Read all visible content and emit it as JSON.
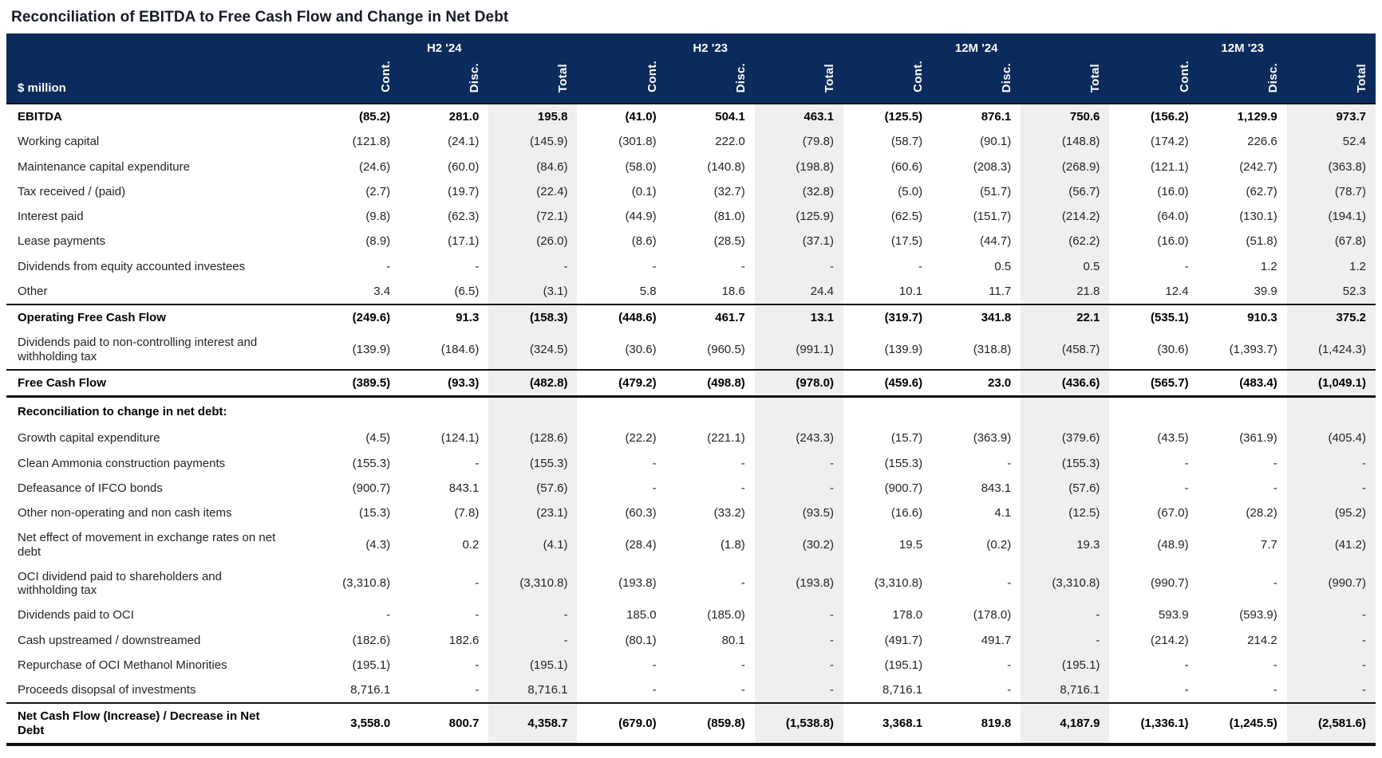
{
  "title": "Reconciliation of EBITDA to Free Cash Flow and Change in Net Debt",
  "colors": {
    "header_bg": "#0b2b5c",
    "header_text": "#ffffff",
    "total_column_bg": "#efefef",
    "title_text": "#161b26",
    "body_text": "#242424",
    "rule_color": "#111111"
  },
  "table": {
    "unit_label": "$ million",
    "groups": [
      {
        "label": "H2 '24"
      },
      {
        "label": "H2 '23"
      },
      {
        "label": "12M '24"
      },
      {
        "label": "12M '23"
      }
    ],
    "sub_columns": [
      "Cont.",
      "Disc.",
      "Total"
    ],
    "rows": [
      {
        "label": "EBITDA",
        "bold": true,
        "section": false,
        "rule_top": false,
        "rule_bottom": null,
        "values": [
          "(85.2)",
          "281.0",
          "195.8",
          "(41.0)",
          "504.1",
          "463.1",
          "(125.5)",
          "876.1",
          "750.6",
          "(156.2)",
          "1,129.9",
          "973.7"
        ]
      },
      {
        "label": "Working capital",
        "bold": false,
        "section": false,
        "rule_top": false,
        "rule_bottom": null,
        "values": [
          "(121.8)",
          "(24.1)",
          "(145.9)",
          "(301.8)",
          "222.0",
          "(79.8)",
          "(58.7)",
          "(90.1)",
          "(148.8)",
          "(174.2)",
          "226.6",
          "52.4"
        ]
      },
      {
        "label": "Maintenance capital expenditure",
        "bold": false,
        "section": false,
        "rule_top": false,
        "rule_bottom": null,
        "values": [
          "(24.6)",
          "(60.0)",
          "(84.6)",
          "(58.0)",
          "(140.8)",
          "(198.8)",
          "(60.6)",
          "(208.3)",
          "(268.9)",
          "(121.1)",
          "(242.7)",
          "(363.8)"
        ]
      },
      {
        "label": "Tax received / (paid)",
        "bold": false,
        "section": false,
        "rule_top": false,
        "rule_bottom": null,
        "values": [
          "(2.7)",
          "(19.7)",
          "(22.4)",
          "(0.1)",
          "(32.7)",
          "(32.8)",
          "(5.0)",
          "(51.7)",
          "(56.7)",
          "(16.0)",
          "(62.7)",
          "(78.7)"
        ]
      },
      {
        "label": "Interest paid",
        "bold": false,
        "section": false,
        "rule_top": false,
        "rule_bottom": null,
        "values": [
          "(9.8)",
          "(62.3)",
          "(72.1)",
          "(44.9)",
          "(81.0)",
          "(125.9)",
          "(62.5)",
          "(151.7)",
          "(214.2)",
          "(64.0)",
          "(130.1)",
          "(194.1)"
        ]
      },
      {
        "label": "Lease payments",
        "bold": false,
        "section": false,
        "rule_top": false,
        "rule_bottom": null,
        "values": [
          "(8.9)",
          "(17.1)",
          "(26.0)",
          "(8.6)",
          "(28.5)",
          "(37.1)",
          "(17.5)",
          "(44.7)",
          "(62.2)",
          "(16.0)",
          "(51.8)",
          "(67.8)"
        ]
      },
      {
        "label": "Dividends from equity accounted investees",
        "bold": false,
        "section": false,
        "rule_top": false,
        "rule_bottom": null,
        "values": [
          "-",
          "-",
          "-",
          "-",
          "-",
          "-",
          "-",
          "0.5",
          "0.5",
          "-",
          "1.2",
          "1.2"
        ]
      },
      {
        "label": "Other",
        "bold": false,
        "section": false,
        "rule_top": false,
        "rule_bottom": null,
        "values": [
          "3.4",
          "(6.5)",
          "(3.1)",
          "5.8",
          "18.6",
          "24.4",
          "10.1",
          "11.7",
          "21.8",
          "12.4",
          "39.9",
          "52.3"
        ]
      },
      {
        "label": "Operating Free Cash Flow",
        "bold": true,
        "section": false,
        "rule_top": true,
        "rule_bottom": null,
        "values": [
          "(249.6)",
          "91.3",
          "(158.3)",
          "(448.6)",
          "461.7",
          "13.1",
          "(319.7)",
          "341.8",
          "22.1",
          "(535.1)",
          "910.3",
          "375.2"
        ]
      },
      {
        "label": "Dividends paid to non-controlling interest and withholding tax",
        "bold": false,
        "section": false,
        "rule_top": false,
        "rule_bottom": null,
        "values": [
          "(139.9)",
          "(184.6)",
          "(324.5)",
          "(30.6)",
          "(960.5)",
          "(991.1)",
          "(139.9)",
          "(318.8)",
          "(458.7)",
          "(30.6)",
          "(1,393.7)",
          "(1,424.3)"
        ]
      },
      {
        "label": "Free Cash Flow",
        "bold": true,
        "section": false,
        "rule_top": true,
        "rule_bottom": "thick",
        "values": [
          "(389.5)",
          "(93.3)",
          "(482.8)",
          "(479.2)",
          "(498.8)",
          "(978.0)",
          "(459.6)",
          "23.0",
          "(436.6)",
          "(565.7)",
          "(483.4)",
          "(1,049.1)"
        ]
      },
      {
        "label": "Reconciliation to change in net debt:",
        "bold": false,
        "section": true,
        "rule_top": false,
        "rule_bottom": null,
        "values": [
          "",
          "",
          "",
          "",
          "",
          "",
          "",
          "",
          "",
          "",
          "",
          ""
        ]
      },
      {
        "label": "Growth capital expenditure",
        "bold": false,
        "section": false,
        "rule_top": false,
        "rule_bottom": null,
        "values": [
          "(4.5)",
          "(124.1)",
          "(128.6)",
          "(22.2)",
          "(221.1)",
          "(243.3)",
          "(15.7)",
          "(363.9)",
          "(379.6)",
          "(43.5)",
          "(361.9)",
          "(405.4)"
        ]
      },
      {
        "label": "Clean Ammonia construction payments",
        "bold": false,
        "section": false,
        "rule_top": false,
        "rule_bottom": null,
        "values": [
          "(155.3)",
          "-",
          "(155.3)",
          "-",
          "-",
          "-",
          "(155.3)",
          "-",
          "(155.3)",
          "-",
          "-",
          "-"
        ]
      },
      {
        "label": "Defeasance of IFCO bonds",
        "bold": false,
        "section": false,
        "rule_top": false,
        "rule_bottom": null,
        "values": [
          "(900.7)",
          "843.1",
          "(57.6)",
          "-",
          "-",
          "-",
          "(900.7)",
          "843.1",
          "(57.6)",
          "-",
          "-",
          "-"
        ]
      },
      {
        "label": "Other non-operating and non cash items",
        "bold": false,
        "section": false,
        "rule_top": false,
        "rule_bottom": null,
        "values": [
          "(15.3)",
          "(7.8)",
          "(23.1)",
          "(60.3)",
          "(33.2)",
          "(93.5)",
          "(16.6)",
          "4.1",
          "(12.5)",
          "(67.0)",
          "(28.2)",
          "(95.2)"
        ]
      },
      {
        "label": "Net effect of movement in exchange rates on net debt",
        "bold": false,
        "section": false,
        "rule_top": false,
        "rule_bottom": null,
        "values": [
          "(4.3)",
          "0.2",
          "(4.1)",
          "(28.4)",
          "(1.8)",
          "(30.2)",
          "19.5",
          "(0.2)",
          "19.3",
          "(48.9)",
          "7.7",
          "(41.2)"
        ]
      },
      {
        "label": "OCI dividend paid to shareholders and withholding tax",
        "bold": false,
        "section": false,
        "rule_top": false,
        "rule_bottom": null,
        "values": [
          "(3,310.8)",
          "-",
          "(3,310.8)",
          "(193.8)",
          "-",
          "(193.8)",
          "(3,310.8)",
          "-",
          "(3,310.8)",
          "(990.7)",
          "-",
          "(990.7)"
        ]
      },
      {
        "label": "Dividends paid to OCI",
        "bold": false,
        "section": false,
        "rule_top": false,
        "rule_bottom": null,
        "values": [
          "-",
          "-",
          "-",
          "185.0",
          "(185.0)",
          "-",
          "178.0",
          "(178.0)",
          "-",
          "593.9",
          "(593.9)",
          "-"
        ]
      },
      {
        "label": "Cash upstreamed / downstreamed",
        "bold": false,
        "section": false,
        "rule_top": false,
        "rule_bottom": null,
        "values": [
          "(182.6)",
          "182.6",
          "-",
          "(80.1)",
          "80.1",
          "-",
          "(491.7)",
          "491.7",
          "-",
          "(214.2)",
          "214.2",
          "-"
        ]
      },
      {
        "label": "Repurchase of OCI Methanol Minorities",
        "bold": false,
        "section": false,
        "rule_top": false,
        "rule_bottom": null,
        "values": [
          "(195.1)",
          "-",
          "(195.1)",
          "-",
          "-",
          "-",
          "(195.1)",
          "-",
          "(195.1)",
          "-",
          "-",
          "-"
        ]
      },
      {
        "label": "Proceeds disopsal of investments",
        "bold": false,
        "section": false,
        "rule_top": false,
        "rule_bottom": null,
        "values": [
          "8,716.1",
          "-",
          "8,716.1",
          "-",
          "-",
          "-",
          "8,716.1",
          "-",
          "8,716.1",
          "-",
          "-",
          "-"
        ]
      },
      {
        "label": "Net Cash Flow (Increase) / Decrease in Net Debt",
        "bold": true,
        "section": false,
        "rule_top": true,
        "rule_bottom": "heavy",
        "values": [
          "3,558.0",
          "800.7",
          "4,358.7",
          "(679.0)",
          "(859.8)",
          "(1,538.8)",
          "3,368.1",
          "819.8",
          "4,187.9",
          "(1,336.1)",
          "(1,245.5)",
          "(2,581.6)"
        ]
      }
    ]
  }
}
